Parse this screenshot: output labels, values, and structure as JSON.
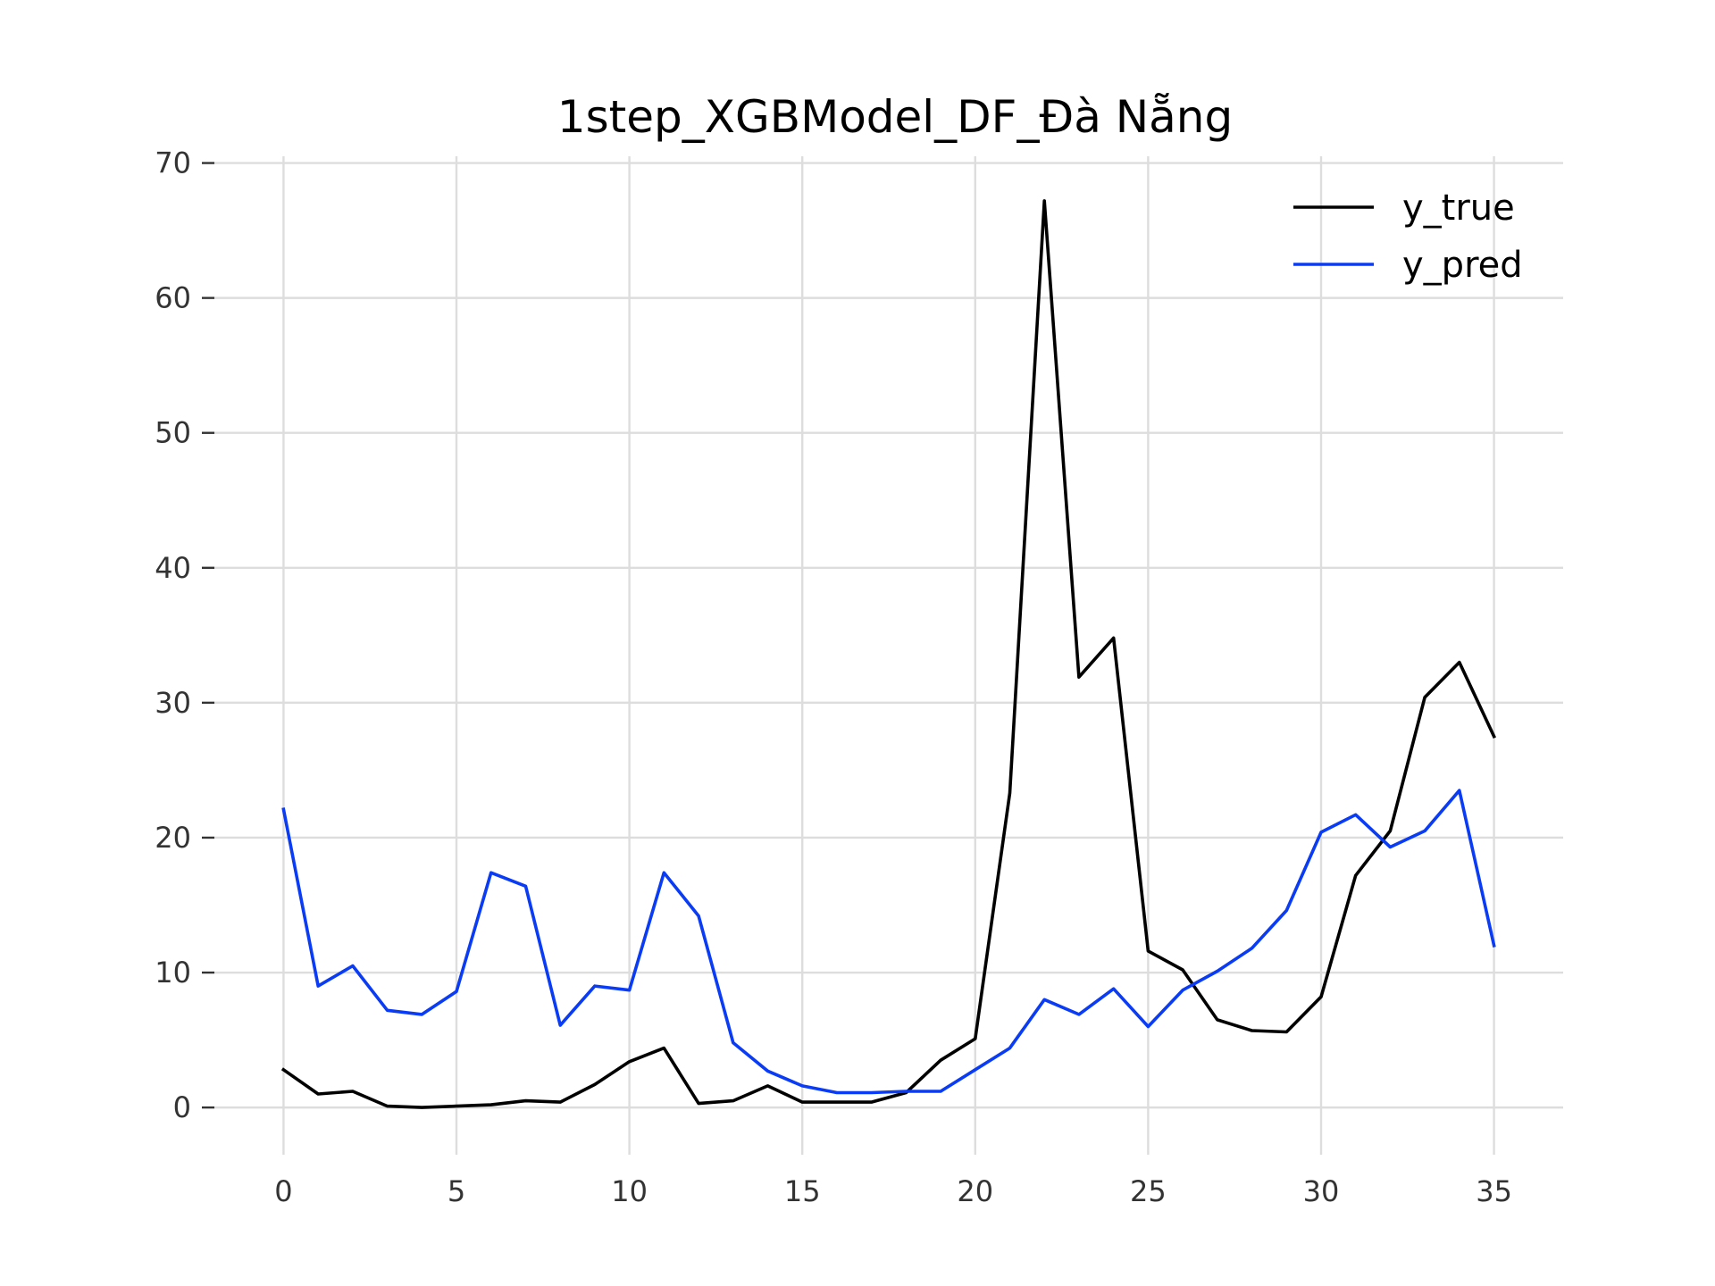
{
  "chart_data": {
    "type": "line",
    "title": "1step_XGBModel_DF_Đà Nẵng",
    "xlabel": "",
    "ylabel": "",
    "xlim": [
      -2,
      37
    ],
    "ylim": [
      -3.5,
      70.5
    ],
    "xticks": [
      0,
      5,
      10,
      15,
      20,
      25,
      30,
      35
    ],
    "yticks": [
      0,
      10,
      20,
      30,
      40,
      50,
      60,
      70
    ],
    "grid": true,
    "legend_position": "top-right",
    "x": [
      0,
      1,
      2,
      3,
      4,
      5,
      6,
      7,
      8,
      9,
      10,
      11,
      12,
      13,
      14,
      15,
      16,
      17,
      18,
      19,
      20,
      21,
      22,
      23,
      24,
      25,
      26,
      27,
      28,
      29,
      30,
      31,
      32,
      33,
      34,
      35
    ],
    "series": [
      {
        "name": "y_true",
        "color": "#000000",
        "values": [
          2.8,
          1.0,
          1.2,
          0.1,
          0.0,
          0.1,
          0.2,
          0.5,
          0.4,
          1.7,
          3.4,
          4.4,
          0.3,
          0.5,
          1.6,
          0.4,
          0.4,
          0.4,
          1.1,
          3.5,
          5.1,
          23.3,
          67.2,
          31.9,
          34.8,
          11.6,
          10.2,
          6.5,
          5.7,
          5.6,
          8.2,
          17.2,
          20.5,
          30.4,
          33.0,
          27.5
        ]
      },
      {
        "name": "y_pred",
        "color": "#0a3cf5",
        "values": [
          22.1,
          9.0,
          10.5,
          7.2,
          6.9,
          8.6,
          17.4,
          16.4,
          6.1,
          9.0,
          8.7,
          17.4,
          14.2,
          4.8,
          2.7,
          1.6,
          1.1,
          1.1,
          1.2,
          1.2,
          2.8,
          4.4,
          8.0,
          6.9,
          8.8,
          6.0,
          8.7,
          10.1,
          11.8,
          14.6,
          20.4,
          21.7,
          19.3,
          20.5,
          23.5,
          12.0
        ]
      }
    ]
  }
}
